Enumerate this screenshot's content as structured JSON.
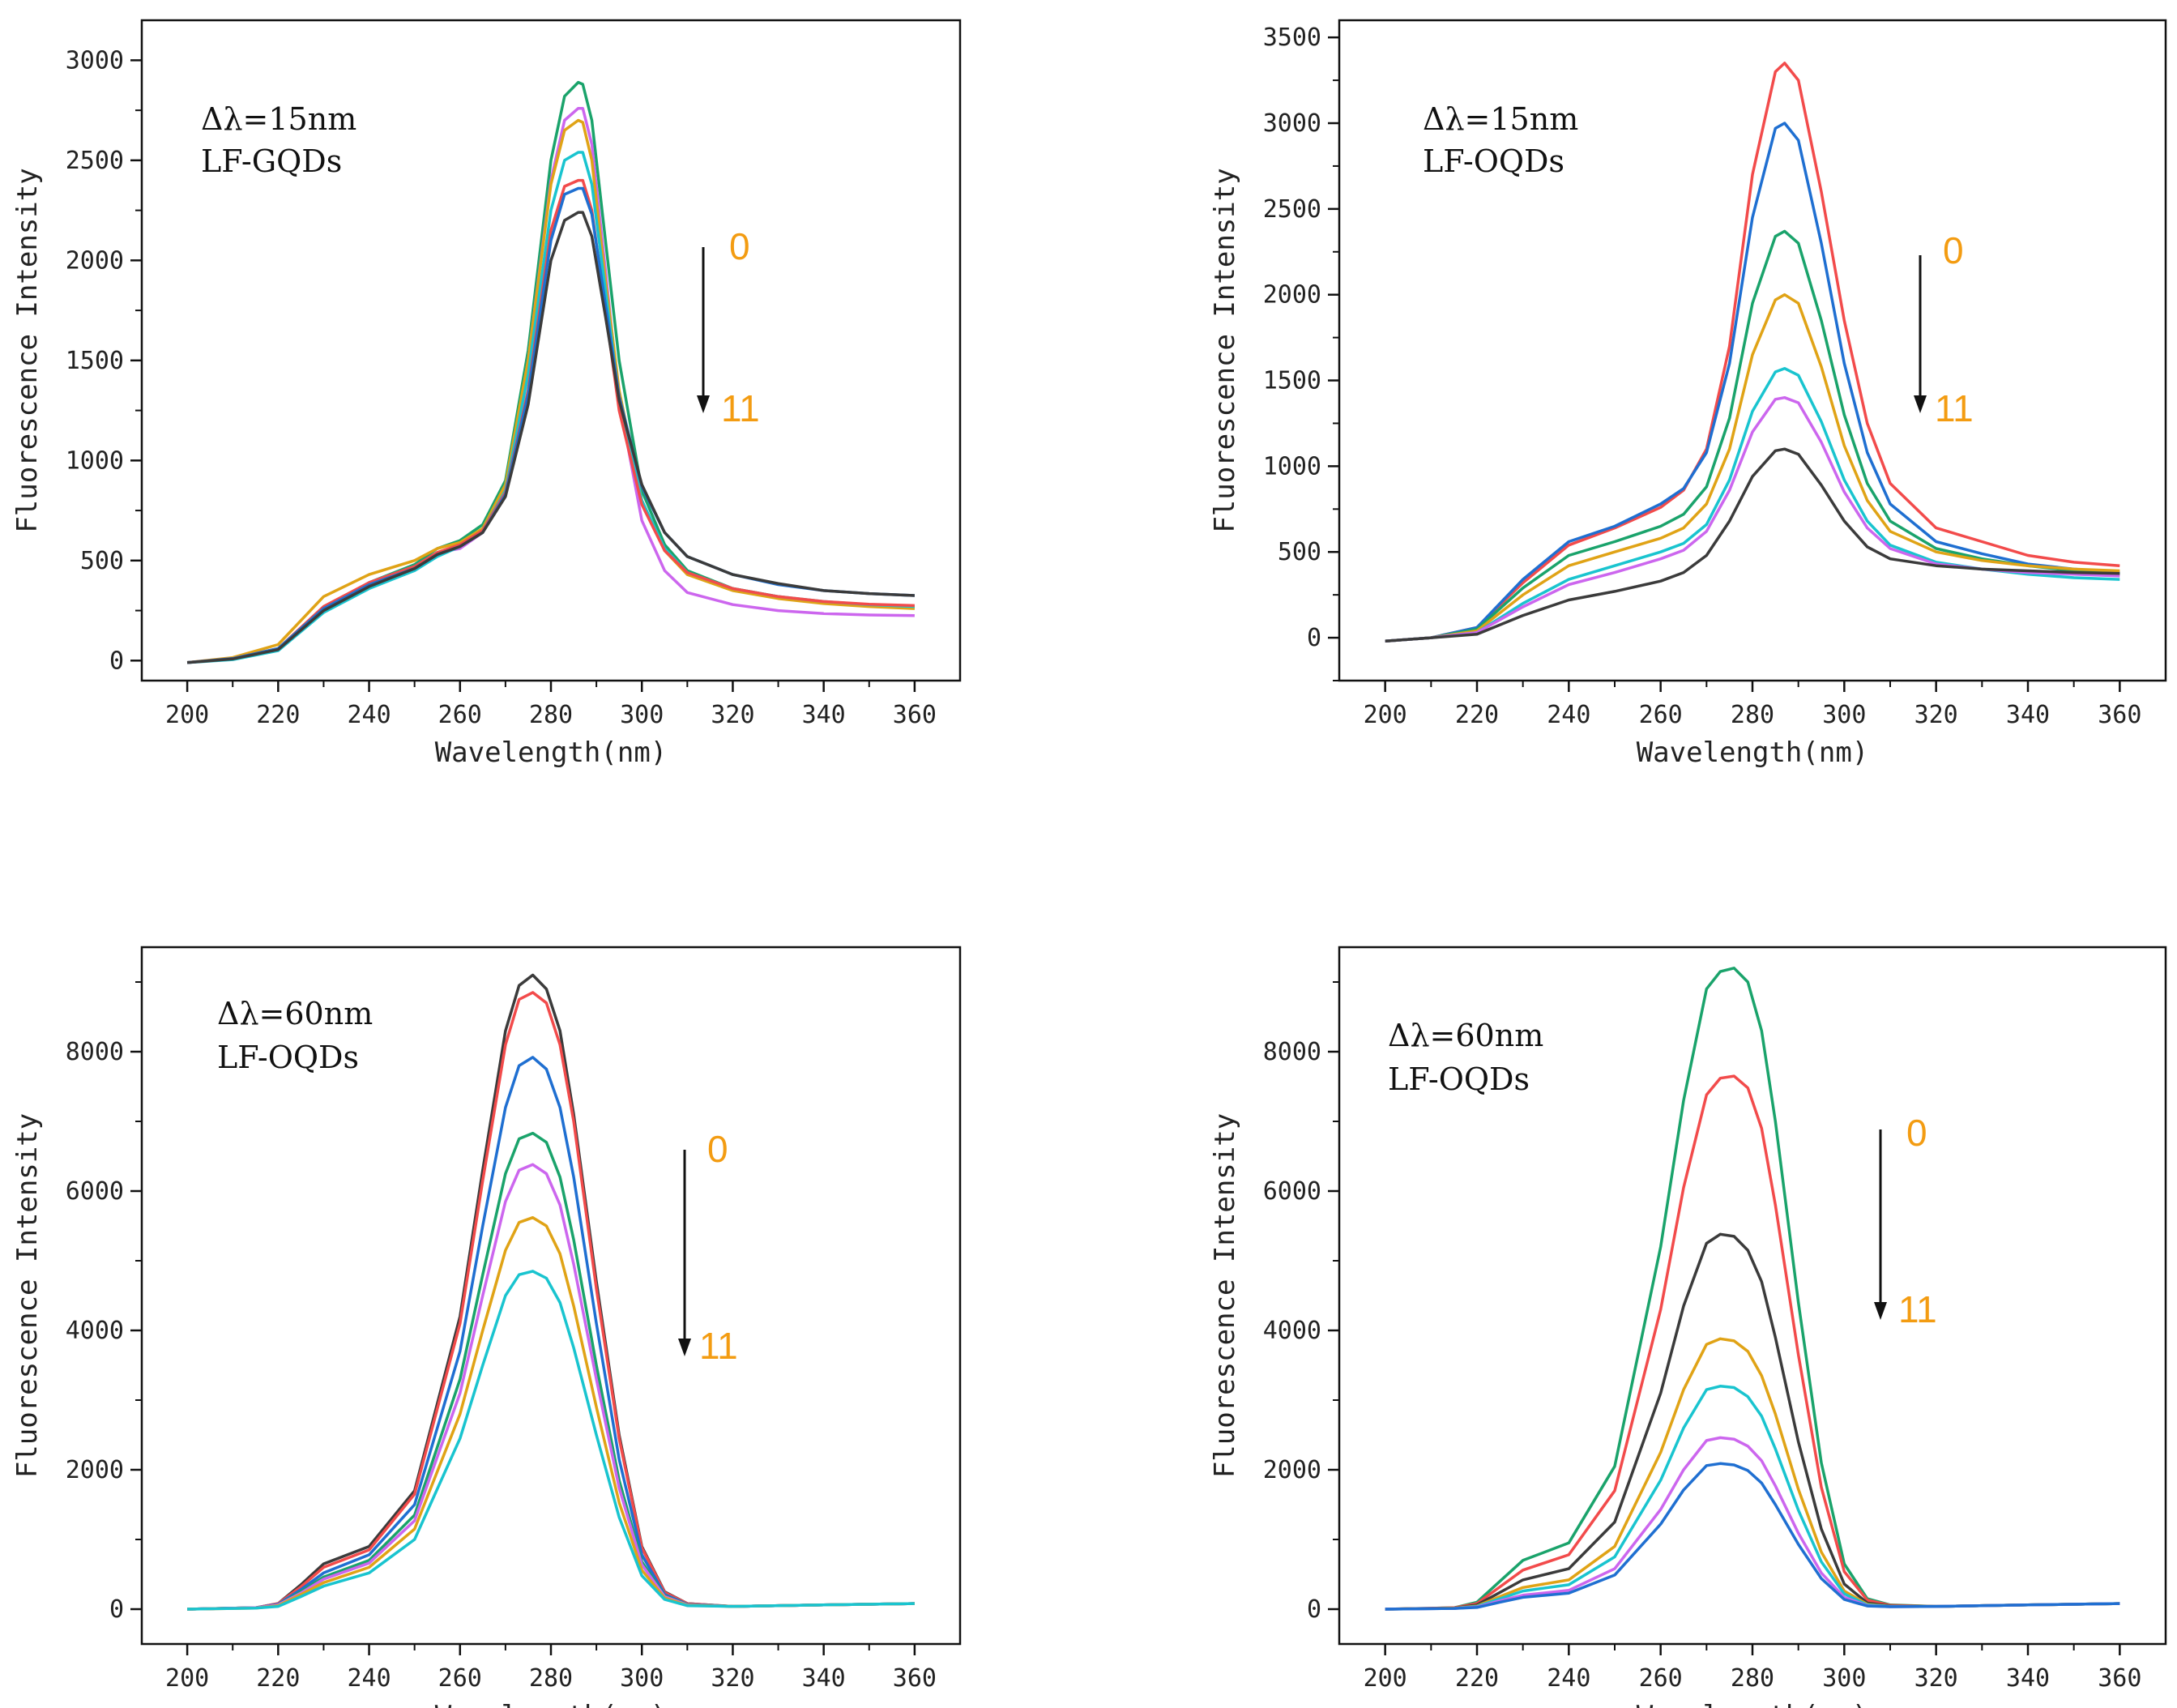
{
  "colors": {
    "black": "#3b3b3b",
    "red": "#f24b4b",
    "blue": "#1f6fd1",
    "green": "#1aa36b",
    "orange": "#e0a316",
    "violet": "#cc66ee",
    "cyan": "#19c4cf",
    "label": "#f39c12"
  },
  "chart_data": [
    {
      "type": "line",
      "x_label": "Wavelength(nm)",
      "y_label": "Fluorescence Intensity",
      "annotation_line1": "Δλ=15nm",
      "annotation_line2": "LF-GQDs",
      "label_top": "0",
      "label_bottom": "11",
      "xlim": [
        190,
        370
      ],
      "ylim": [
        -100,
        3200
      ],
      "xticks": [
        200,
        220,
        240,
        260,
        280,
        300,
        320,
        340,
        360
      ],
      "yticks": [
        0,
        500,
        1000,
        1500,
        2000,
        2500,
        3000
      ],
      "x": [
        200,
        210,
        220,
        230,
        240,
        250,
        255,
        260,
        265,
        270,
        275,
        280,
        283,
        286,
        287,
        289,
        292,
        295,
        300,
        305,
        310,
        320,
        330,
        340,
        350,
        360
      ],
      "series": [
        {
          "name": "green",
          "color_key": "green",
          "values": [
            -10,
            10,
            60,
            260,
            390,
            480,
            560,
            600,
            680,
            900,
            1550,
            2500,
            2820,
            2890,
            2880,
            2700,
            2100,
            1500,
            850,
            580,
            450,
            360,
            320,
            290,
            275,
            265
          ]
        },
        {
          "name": "violet",
          "color_key": "violet",
          "values": [
            -10,
            10,
            55,
            260,
            390,
            470,
            540,
            560,
            640,
            860,
            1500,
            2400,
            2700,
            2760,
            2760,
            2580,
            1950,
            1300,
            700,
            450,
            340,
            280,
            250,
            235,
            228,
            225
          ]
        },
        {
          "name": "orange",
          "color_key": "orange",
          "values": [
            -10,
            15,
            80,
            320,
            430,
            500,
            560,
            590,
            660,
            880,
            1500,
            2380,
            2650,
            2700,
            2690,
            2500,
            1900,
            1350,
            800,
            550,
            430,
            350,
            310,
            285,
            270,
            260
          ]
        },
        {
          "name": "cyan",
          "color_key": "cyan",
          "values": [
            -10,
            5,
            50,
            240,
            360,
            450,
            520,
            570,
            650,
            850,
            1430,
            2250,
            2500,
            2540,
            2540,
            2380,
            1850,
            1300,
            800,
            560,
            440,
            360,
            320,
            295,
            280,
            270
          ]
        },
        {
          "name": "red",
          "color_key": "red",
          "values": [
            -10,
            10,
            60,
            270,
            390,
            470,
            540,
            580,
            650,
            840,
            1350,
            2150,
            2370,
            2400,
            2400,
            2250,
            1750,
            1250,
            780,
            550,
            440,
            360,
            320,
            295,
            282,
            275
          ]
        },
        {
          "name": "blue",
          "color_key": "blue",
          "values": [
            -10,
            10,
            60,
            260,
            380,
            460,
            530,
            570,
            640,
            830,
            1330,
            2100,
            2330,
            2360,
            2360,
            2230,
            1780,
            1320,
            870,
            640,
            520,
            430,
            380,
            350,
            335,
            325
          ]
        },
        {
          "name": "black",
          "color_key": "black",
          "values": [
            -10,
            8,
            55,
            250,
            370,
            460,
            530,
            570,
            640,
            820,
            1280,
            2000,
            2200,
            2240,
            2240,
            2120,
            1720,
            1300,
            880,
            640,
            520,
            430,
            385,
            350,
            335,
            325
          ]
        }
      ]
    },
    {
      "type": "line",
      "x_label": "Wavelength(nm)",
      "y_label": "Fluorescence Intensity",
      "annotation_line1": "Δλ=15nm",
      "annotation_line2": "LF-OQDs",
      "label_top": "0",
      "label_bottom": "11",
      "xlim": [
        190,
        370
      ],
      "ylim": [
        -250,
        3600
      ],
      "xticks": [
        200,
        220,
        240,
        260,
        280,
        300,
        320,
        340,
        360
      ],
      "yticks": [
        0,
        500,
        1000,
        1500,
        2000,
        2500,
        3000,
        3500
      ],
      "x": [
        200,
        210,
        220,
        230,
        240,
        250,
        260,
        265,
        270,
        275,
        280,
        285,
        287,
        290,
        295,
        300,
        305,
        310,
        320,
        330,
        340,
        350,
        360
      ],
      "series": [
        {
          "name": "red",
          "color_key": "red",
          "values": [
            -20,
            0,
            60,
            320,
            540,
            640,
            760,
            860,
            1100,
            1700,
            2700,
            3300,
            3350,
            3250,
            2600,
            1850,
            1250,
            900,
            640,
            560,
            480,
            440,
            420
          ]
        },
        {
          "name": "blue",
          "color_key": "blue",
          "values": [
            -20,
            0,
            60,
            340,
            560,
            650,
            780,
            870,
            1080,
            1600,
            2450,
            2970,
            3000,
            2900,
            2300,
            1600,
            1080,
            780,
            560,
            490,
            430,
            400,
            380
          ]
        },
        {
          "name": "green",
          "color_key": "green",
          "values": [
            -20,
            0,
            50,
            290,
            480,
            560,
            650,
            720,
            880,
            1280,
            1950,
            2340,
            2370,
            2300,
            1850,
            1300,
            900,
            680,
            520,
            460,
            420,
            390,
            370
          ]
        },
        {
          "name": "orange",
          "color_key": "orange",
          "values": [
            -20,
            0,
            40,
            250,
            420,
            500,
            580,
            640,
            780,
            1100,
            1650,
            1970,
            2000,
            1950,
            1580,
            1120,
            800,
            620,
            500,
            450,
            420,
            400,
            390
          ]
        },
        {
          "name": "cyan",
          "color_key": "cyan",
          "values": [
            -20,
            0,
            30,
            200,
            340,
            420,
            500,
            550,
            660,
            920,
            1320,
            1550,
            1570,
            1530,
            1260,
            920,
            680,
            540,
            440,
            400,
            370,
            350,
            340
          ]
        },
        {
          "name": "violet",
          "color_key": "violet",
          "values": [
            -20,
            0,
            30,
            180,
            310,
            380,
            460,
            510,
            620,
            860,
            1200,
            1390,
            1400,
            1370,
            1140,
            850,
            640,
            520,
            430,
            400,
            380,
            370,
            360
          ]
        },
        {
          "name": "black",
          "color_key": "black",
          "values": [
            -20,
            0,
            20,
            130,
            220,
            270,
            330,
            380,
            480,
            680,
            940,
            1090,
            1100,
            1070,
            890,
            680,
            530,
            460,
            420,
            400,
            390,
            380,
            375
          ]
        }
      ]
    },
    {
      "type": "line",
      "x_label": "Wavelength(nm)",
      "y_label": "Fluorescence Intensity",
      "annotation_line1": "Δλ=60nm",
      "annotation_line2": "LF-OQDs",
      "label_top": "0",
      "label_bottom": "11",
      "xlim": [
        190,
        370
      ],
      "ylim": [
        -500,
        9500
      ],
      "xticks": [
        200,
        220,
        240,
        260,
        280,
        300,
        320,
        340,
        360
      ],
      "yticks": [
        0,
        2000,
        4000,
        6000,
        8000
      ],
      "x": [
        200,
        215,
        220,
        225,
        230,
        240,
        250,
        260,
        265,
        270,
        273,
        276,
        279,
        282,
        285,
        290,
        295,
        300,
        305,
        310,
        320,
        340,
        360
      ],
      "series": [
        {
          "name": "black",
          "color_key": "black",
          "values": [
            0,
            20,
            80,
            350,
            650,
            900,
            1700,
            4200,
            6300,
            8300,
            8950,
            9100,
            8900,
            8300,
            7100,
            4700,
            2500,
            900,
            250,
            80,
            40,
            60,
            80
          ]
        },
        {
          "name": "red",
          "color_key": "red",
          "values": [
            0,
            20,
            80,
            320,
            600,
            850,
            1650,
            4100,
            6150,
            8100,
            8750,
            8850,
            8700,
            8100,
            7000,
            4600,
            2450,
            880,
            240,
            80,
            40,
            60,
            80
          ]
        },
        {
          "name": "blue",
          "color_key": "blue",
          "values": [
            0,
            20,
            70,
            280,
            520,
            780,
            1500,
            3700,
            5500,
            7200,
            7800,
            7920,
            7750,
            7200,
            6200,
            4100,
            2150,
            780,
            210,
            70,
            40,
            60,
            80
          ]
        },
        {
          "name": "green",
          "color_key": "green",
          "values": [
            0,
            20,
            60,
            250,
            460,
            700,
            1350,
            3300,
            4800,
            6250,
            6750,
            6830,
            6700,
            6200,
            5300,
            3500,
            1850,
            680,
            190,
            65,
            40,
            60,
            80
          ]
        },
        {
          "name": "violet",
          "color_key": "violet",
          "values": [
            0,
            20,
            60,
            230,
            430,
            660,
            1270,
            3100,
            4500,
            5850,
            6300,
            6380,
            6250,
            5800,
            4950,
            3300,
            1740,
            640,
            180,
            60,
            40,
            60,
            80
          ]
        },
        {
          "name": "orange",
          "color_key": "orange",
          "values": [
            0,
            15,
            50,
            210,
            380,
            600,
            1150,
            2800,
            4000,
            5150,
            5550,
            5620,
            5500,
            5100,
            4350,
            2900,
            1530,
            560,
            160,
            55,
            40,
            60,
            80
          ]
        },
        {
          "name": "cyan",
          "color_key": "cyan",
          "values": [
            0,
            15,
            40,
            180,
            330,
            520,
            1000,
            2450,
            3500,
            4500,
            4800,
            4850,
            4750,
            4400,
            3750,
            2500,
            1320,
            480,
            140,
            50,
            40,
            60,
            80
          ]
        }
      ]
    },
    {
      "type": "line",
      "x_label": "Wavelength(nm)",
      "y_label": "Fluorescence Intensity",
      "annotation_line1": "Δλ=60nm",
      "annotation_line2": "LF-OQDs",
      "label_top": "0",
      "label_bottom": "11",
      "xlim": [
        190,
        370
      ],
      "ylim": [
        -500,
        9500
      ],
      "xticks": [
        200,
        220,
        240,
        260,
        280,
        300,
        320,
        340,
        360
      ],
      "yticks": [
        0,
        2000,
        4000,
        6000,
        8000
      ],
      "x": [
        200,
        215,
        220,
        225,
        230,
        240,
        250,
        260,
        265,
        270,
        273,
        276,
        279,
        282,
        285,
        290,
        295,
        300,
        305,
        310,
        320,
        340,
        360
      ],
      "series": [
        {
          "name": "green",
          "color_key": "green",
          "values": [
            0,
            20,
            100,
            400,
            700,
            950,
            2050,
            5200,
            7300,
            8900,
            9150,
            9200,
            9000,
            8300,
            7000,
            4400,
            2100,
            650,
            150,
            60,
            40,
            60,
            80
          ]
        },
        {
          "name": "red",
          "color_key": "red",
          "values": [
            0,
            20,
            80,
            320,
            560,
            780,
            1700,
            4300,
            6050,
            7380,
            7620,
            7650,
            7480,
            6900,
            5800,
            3650,
            1750,
            540,
            130,
            55,
            40,
            60,
            80
          ]
        },
        {
          "name": "black",
          "color_key": "black",
          "values": [
            0,
            15,
            60,
            240,
            420,
            580,
            1250,
            3100,
            4350,
            5250,
            5380,
            5350,
            5150,
            4700,
            3900,
            2400,
            1150,
            360,
            90,
            45,
            40,
            60,
            80
          ]
        },
        {
          "name": "orange",
          "color_key": "orange",
          "values": [
            0,
            15,
            45,
            180,
            310,
            420,
            900,
            2250,
            3150,
            3800,
            3880,
            3850,
            3700,
            3350,
            2800,
            1720,
            820,
            260,
            70,
            40,
            40,
            60,
            80
          ]
        },
        {
          "name": "cyan",
          "color_key": "cyan",
          "values": [
            0,
            10,
            40,
            150,
            260,
            350,
            750,
            1850,
            2600,
            3150,
            3200,
            3180,
            3050,
            2770,
            2300,
            1420,
            680,
            220,
            60,
            40,
            40,
            60,
            80
          ]
        },
        {
          "name": "violet",
          "color_key": "violet",
          "values": [
            0,
            10,
            30,
            120,
            200,
            270,
            580,
            1430,
            2000,
            2420,
            2460,
            2440,
            2340,
            2130,
            1770,
            1090,
            520,
            170,
            50,
            35,
            40,
            60,
            80
          ]
        },
        {
          "name": "blue",
          "color_key": "blue",
          "values": [
            0,
            10,
            25,
            100,
            170,
            230,
            490,
            1220,
            1710,
            2060,
            2090,
            2070,
            1990,
            1810,
            1500,
            930,
            440,
            140,
            45,
            35,
            40,
            60,
            80
          ]
        }
      ]
    }
  ]
}
